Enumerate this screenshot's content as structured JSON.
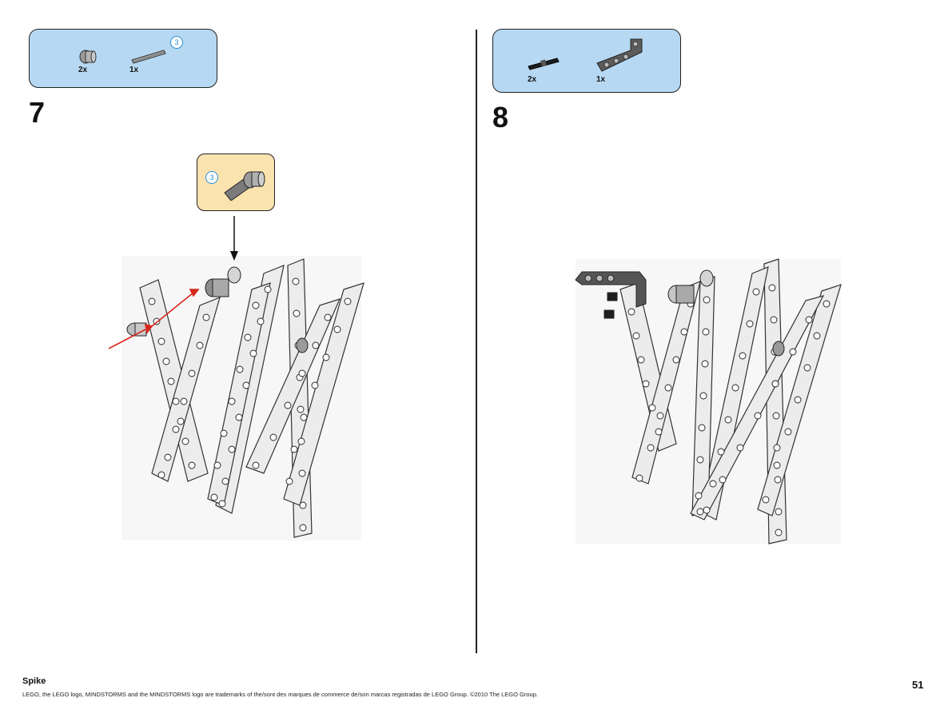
{
  "steps": [
    {
      "number": "7",
      "parts": [
        {
          "qty": "2x",
          "icon": "bush-icon"
        },
        {
          "qty": "1x",
          "icon": "axle-3-icon",
          "length_label": "3"
        }
      ],
      "callout": {
        "length_label": "3",
        "icon": "axle-pin-icon"
      }
    },
    {
      "number": "8",
      "parts": [
        {
          "qty": "2x",
          "icon": "pin-with-friction-icon"
        },
        {
          "qty": "1x",
          "icon": "angled-beam-icon"
        }
      ]
    }
  ],
  "footer": {
    "title": "Spike",
    "legal": "LEGO, the LEGO logo, MINDSTORMS and the MINDSTORMS logo are trademarks of the/sont des marques de commerce de/son marcas registradas de LEGO Group. ©2010 The LEGO Group.",
    "page_number": "51"
  },
  "colors": {
    "parts_box": "#b6d8f2",
    "callout_box": "#fbe3b0",
    "arrow_red": "#d8261c",
    "length_circle": "#2a8ccf",
    "beam_fill": "#ececec"
  }
}
